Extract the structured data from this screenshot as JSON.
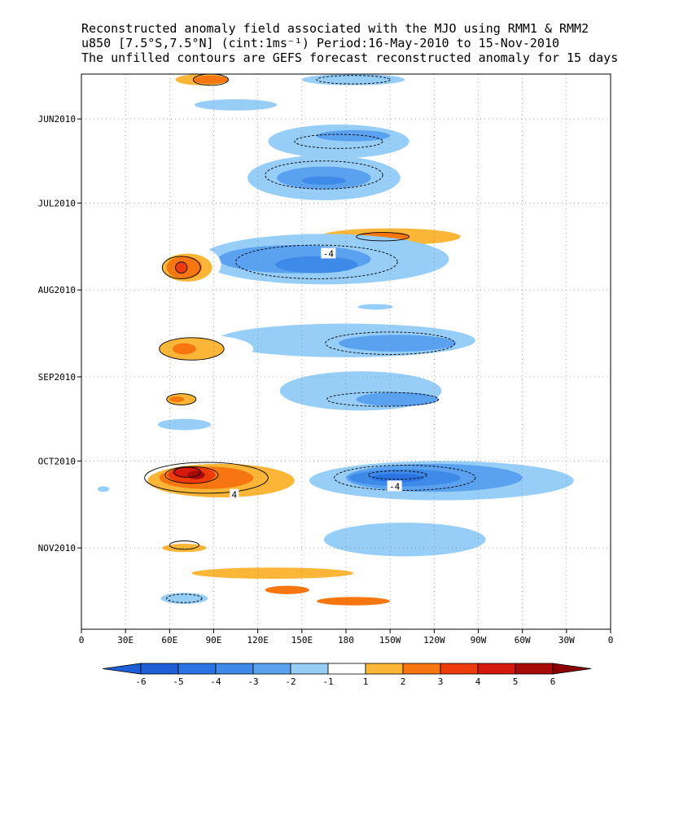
{
  "title": {
    "line1": "Reconstructed anomaly field associated with the MJO using RMM1 & RMM2",
    "line2": "u850 [7.5°S,7.5°N] (cint:1ms⁻¹) Period:16-May-2010 to 15-Nov-2010",
    "line3": "The unfilled contours are GEFS forecast reconstructed anomaly for 15 days"
  },
  "chart_data": {
    "type": "heatmap",
    "title": "Reconstructed anomaly field associated with the MJO using RMM1 & RMM2",
    "x_ticks": [
      "0",
      "30E",
      "60E",
      "90E",
      "120E",
      "150E",
      "180",
      "150W",
      "120W",
      "90W",
      "60W",
      "30W",
      "0"
    ],
    "x_tick_lons": [
      0,
      30,
      60,
      90,
      120,
      150,
      180,
      210,
      240,
      270,
      300,
      330,
      360
    ],
    "xlim": [
      0,
      360
    ],
    "y_ticks": [
      "JUN2010",
      "JUL2010",
      "AUG2010",
      "SEP2010",
      "OCT2010",
      "NOV2010"
    ],
    "y_tick_days": [
      16,
      46,
      77,
      108,
      138,
      169
    ],
    "ylim_days": [
      0,
      198
    ],
    "grid": true,
    "colorbar": {
      "levels": [
        "-6",
        "-5",
        "-4",
        "-3",
        "-2",
        "-1",
        "1",
        "2",
        "3",
        "4",
        "5",
        "6"
      ],
      "colors": [
        "#1e5fd8",
        "#2b74e3",
        "#3d8ae9",
        "#5aa2ef",
        "#97cef7",
        "#ffffff",
        "#fbb638",
        "#f8760f",
        "#ee3b0c",
        "#d41a0c",
        "#a80a0a",
        "#8b0000"
      ],
      "low_arrow_color": "#1e5fd8",
      "high_arrow_color": "#8b0000"
    },
    "anomaly_regions": [
      {
        "lon": 82,
        "day": 2,
        "rx": 18,
        "ry": 2,
        "level": 2
      },
      {
        "lon": 88,
        "day": 2,
        "rx": 12,
        "ry": 1.5,
        "level": 3
      },
      {
        "lon": 185,
        "day": 2,
        "rx": 35,
        "ry": 2,
        "level": -2
      },
      {
        "lon": 105,
        "day": 11,
        "rx": 28,
        "ry": 2,
        "level": -2
      },
      {
        "lon": 205,
        "day": 12,
        "rx": 22,
        "ry": 1,
        "level": 1
      },
      {
        "lon": 175,
        "day": 24,
        "rx": 48,
        "ry": 6,
        "level": -2
      },
      {
        "lon": 185,
        "day": 22,
        "rx": 25,
        "ry": 2,
        "level": -3
      },
      {
        "lon": 82,
        "day": 24,
        "rx": 15,
        "ry": 4,
        "level": 1
      },
      {
        "lon": 75,
        "day": 31,
        "rx": 12,
        "ry": 2,
        "level": 1
      },
      {
        "lon": 165,
        "day": 37,
        "rx": 52,
        "ry": 8,
        "level": -2
      },
      {
        "lon": 165,
        "day": 37,
        "rx": 32,
        "ry": 4,
        "level": -3
      },
      {
        "lon": 165,
        "day": 38,
        "rx": 15,
        "ry": 1.5,
        "level": -4
      },
      {
        "lon": 60,
        "day": 36,
        "rx": 12,
        "ry": 1.5,
        "level": 1
      },
      {
        "lon": 40,
        "day": 36,
        "rx": 4,
        "ry": 1,
        "level": 1
      },
      {
        "lon": 48,
        "day": 40,
        "rx": 5,
        "ry": 1,
        "level": 1
      },
      {
        "lon": 225,
        "day": 47,
        "rx": 25,
        "ry": 1.5,
        "level": 1
      },
      {
        "lon": 260,
        "day": 47,
        "rx": 8,
        "ry": 1,
        "level": 1
      },
      {
        "lon": 210,
        "day": 58,
        "rx": 48,
        "ry": 3,
        "level": 2
      },
      {
        "lon": 205,
        "day": 58,
        "rx": 18,
        "ry": 1.5,
        "level": 3
      },
      {
        "lon": 165,
        "day": 66,
        "rx": 85,
        "ry": 9,
        "level": -2
      },
      {
        "lon": 145,
        "day": 66,
        "rx": 52,
        "ry": 5,
        "level": -3
      },
      {
        "lon": 160,
        "day": 68,
        "rx": 28,
        "ry": 3,
        "level": -4
      },
      {
        "lon": 30,
        "day": 66,
        "rx": 12,
        "ry": 7,
        "level": 1
      },
      {
        "lon": 73,
        "day": 68,
        "rx": 22,
        "ry": 7,
        "level": 1
      },
      {
        "lon": 72,
        "day": 69,
        "rx": 17,
        "ry": 5,
        "level": 2
      },
      {
        "lon": 70,
        "day": 69,
        "rx": 12,
        "ry": 4,
        "level": 3
      },
      {
        "lon": 68,
        "day": 69,
        "rx": 4,
        "ry": 2,
        "level": 4
      },
      {
        "lon": 73,
        "day": 80,
        "rx": 14,
        "ry": 1.5,
        "level": 1
      },
      {
        "lon": 200,
        "day": 83,
        "rx": 12,
        "ry": 1,
        "level": -2
      },
      {
        "lon": 180,
        "day": 95,
        "rx": 88,
        "ry": 6,
        "level": -2
      },
      {
        "lon": 215,
        "day": 96,
        "rx": 40,
        "ry": 3,
        "level": -3
      },
      {
        "lon": 80,
        "day": 98,
        "rx": 37,
        "ry": 5,
        "level": 1
      },
      {
        "lon": 75,
        "day": 98,
        "rx": 22,
        "ry": 4,
        "level": 2
      },
      {
        "lon": 70,
        "day": 98,
        "rx": 8,
        "ry": 2,
        "level": 3
      },
      {
        "lon": 70,
        "day": 109,
        "rx": 15,
        "ry": 2,
        "level": 1
      },
      {
        "lon": 190,
        "day": 113,
        "rx": 55,
        "ry": 7,
        "level": -2
      },
      {
        "lon": 215,
        "day": 116,
        "rx": 28,
        "ry": 2.5,
        "level": -3
      },
      {
        "lon": 68,
        "day": 116,
        "rx": 15,
        "ry": 4,
        "level": 1
      },
      {
        "lon": 68,
        "day": 116,
        "rx": 10,
        "ry": 2,
        "level": 2
      },
      {
        "lon": 65,
        "day": 116,
        "rx": 5,
        "ry": 1,
        "level": 3
      },
      {
        "lon": 70,
        "day": 125,
        "rx": 18,
        "ry": 2,
        "level": -2
      },
      {
        "lon": 210,
        "day": 125,
        "rx": 30,
        "ry": 1.5,
        "level": 1
      },
      {
        "lon": 95,
        "day": 145,
        "rx": 60,
        "ry": 8,
        "level": 1
      },
      {
        "lon": 95,
        "day": 145,
        "rx": 50,
        "ry": 6,
        "level": 2
      },
      {
        "lon": 85,
        "day": 144,
        "rx": 32,
        "ry": 4,
        "level": 3
      },
      {
        "lon": 75,
        "day": 143,
        "rx": 16,
        "ry": 3,
        "level": 4
      },
      {
        "lon": 72,
        "day": 142,
        "rx": 10,
        "ry": 2,
        "level": 5
      },
      {
        "lon": 78,
        "day": 143,
        "rx": 6,
        "ry": 1.5,
        "level": 6
      },
      {
        "lon": 25,
        "day": 140,
        "rx": 2,
        "ry": 1,
        "level": 1
      },
      {
        "lon": 245,
        "day": 145,
        "rx": 90,
        "ry": 7,
        "level": -2
      },
      {
        "lon": 240,
        "day": 144,
        "rx": 60,
        "ry": 5,
        "level": -3
      },
      {
        "lon": 220,
        "day": 144,
        "rx": 38,
        "ry": 3,
        "level": -4
      },
      {
        "lon": 215,
        "day": 144,
        "rx": 18,
        "ry": 1.5,
        "level": -5
      },
      {
        "lon": 15,
        "day": 148,
        "rx": 4,
        "ry": 1,
        "level": -2
      },
      {
        "lon": 220,
        "day": 166,
        "rx": 55,
        "ry": 6,
        "level": -2
      },
      {
        "lon": 70,
        "day": 168,
        "rx": 35,
        "ry": 4,
        "level": 1
      },
      {
        "lon": 70,
        "day": 169,
        "rx": 15,
        "ry": 1.5,
        "level": 2
      },
      {
        "lon": 160,
        "day": 180,
        "rx": 95,
        "ry": 5,
        "level": 1
      },
      {
        "lon": 130,
        "day": 178,
        "rx": 55,
        "ry": 2,
        "level": 2
      },
      {
        "lon": 140,
        "day": 184,
        "rx": 15,
        "ry": 1.5,
        "level": 3
      },
      {
        "lon": 185,
        "day": 188,
        "rx": 25,
        "ry": 1.5,
        "level": 3
      },
      {
        "lon": 70,
        "day": 187,
        "rx": 16,
        "ry": 2,
        "level": -2
      }
    ],
    "forecast_contours": [
      {
        "lon": 88,
        "day": 2,
        "rx": 12,
        "ry": 2,
        "dashed": false
      },
      {
        "lon": 185,
        "day": 2,
        "rx": 25,
        "ry": 1.5,
        "dashed": true
      },
      {
        "lon": 175,
        "day": 24,
        "rx": 30,
        "ry": 2.5,
        "dashed": true
      },
      {
        "lon": 165,
        "day": 36,
        "rx": 40,
        "ry": 5,
        "dashed": true
      },
      {
        "lon": 205,
        "day": 58,
        "rx": 18,
        "ry": 1.5,
        "dashed": false
      },
      {
        "lon": 160,
        "day": 67,
        "rx": 55,
        "ry": 6,
        "dashed": true
      },
      {
        "lon": 68,
        "day": 69,
        "rx": 13,
        "ry": 4,
        "dashed": false
      },
      {
        "lon": 68,
        "day": 69,
        "rx": 4,
        "ry": 2,
        "dashed": false
      },
      {
        "lon": 210,
        "day": 96,
        "rx": 44,
        "ry": 4,
        "dashed": true
      },
      {
        "lon": 75,
        "day": 98,
        "rx": 22,
        "ry": 4,
        "dashed": false
      },
      {
        "lon": 205,
        "day": 116,
        "rx": 38,
        "ry": 2.5,
        "dashed": true
      },
      {
        "lon": 68,
        "day": 116,
        "rx": 10,
        "ry": 2,
        "dashed": false
      },
      {
        "lon": 85,
        "day": 144,
        "rx": 42,
        "ry": 5.5,
        "dashed": false
      },
      {
        "lon": 75,
        "day": 143,
        "rx": 18,
        "ry": 3,
        "dashed": false
      },
      {
        "lon": 72,
        "day": 142,
        "rx": 9,
        "ry": 1.8,
        "dashed": false
      },
      {
        "lon": 220,
        "day": 144,
        "rx": 48,
        "ry": 4.5,
        "dashed": true
      },
      {
        "lon": 215,
        "day": 143,
        "rx": 20,
        "ry": 1.5,
        "dashed": true
      },
      {
        "lon": 70,
        "day": 168,
        "rx": 10,
        "ry": 1.5,
        "dashed": false
      },
      {
        "lon": 70,
        "day": 187,
        "rx": 12,
        "ry": 1.5,
        "dashed": true
      }
    ],
    "contour_labels": [
      {
        "text": "-4",
        "lon": 168,
        "day": 64
      },
      {
        "text": "4",
        "lon": 104,
        "day": 150
      },
      {
        "text": "-4",
        "lon": 213,
        "day": 147
      }
    ]
  }
}
